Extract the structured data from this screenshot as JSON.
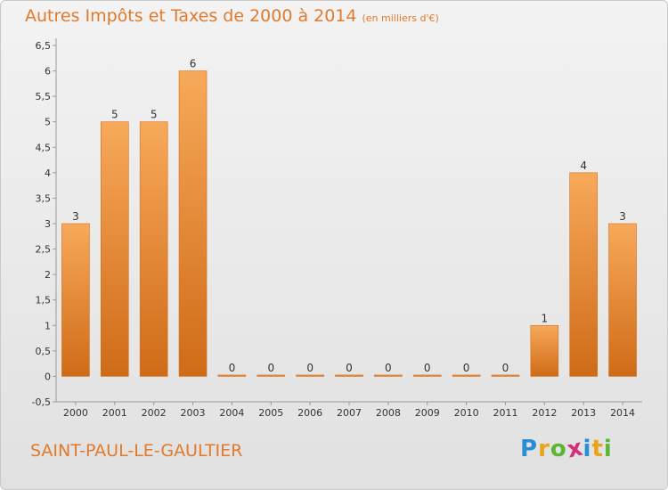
{
  "chart_data": {
    "type": "bar",
    "title": "Autres Impôts et Taxes de 2000 à 2014",
    "subtitle": "(en milliers d'€)",
    "categories": [
      "2000",
      "2001",
      "2002",
      "2003",
      "2004",
      "2005",
      "2006",
      "2007",
      "2008",
      "2009",
      "2010",
      "2011",
      "2012",
      "2013",
      "2014"
    ],
    "values": [
      3,
      5,
      5,
      6,
      0,
      0,
      0,
      0,
      0,
      0,
      0,
      0,
      1,
      4,
      3
    ],
    "xlabel": "",
    "ylabel": "",
    "ylim": [
      -0.5,
      6.5
    ],
    "yticks": [
      "-0,5",
      "0",
      "0,5",
      "1",
      "1,5",
      "2",
      "2,5",
      "3",
      "3,5",
      "4",
      "4,5",
      "5",
      "5,5",
      "6",
      "6,5"
    ],
    "grid": false,
    "bar_color": "#e07a2c"
  },
  "footer": {
    "location": "SAINT-PAUL-LE-GAULTIER",
    "brand": [
      "P",
      "r",
      "o",
      "x",
      "i",
      "t",
      "i"
    ]
  },
  "colors": {
    "accent": "#e07a2c",
    "brand": [
      "#2a8ed6",
      "#e8a317",
      "#5cb534",
      "#d62f7a",
      "#2a8ed6",
      "#e8a317",
      "#5cb534"
    ]
  }
}
